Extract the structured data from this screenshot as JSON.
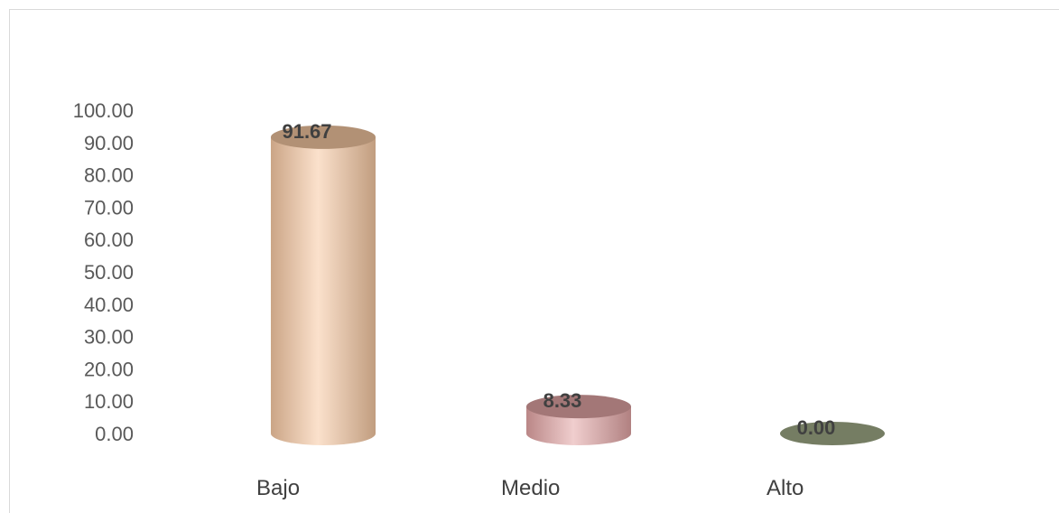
{
  "chart_data": {
    "type": "bar",
    "style": "3d-cylinder",
    "categories": [
      "Bajo",
      "Medio",
      "Alto"
    ],
    "values": [
      91.67,
      8.33,
      0.0
    ],
    "data_labels": [
      "91.67",
      "8.33",
      "0.00"
    ],
    "colors": [
      "#f7c9a3",
      "#e3a5a5",
      "#a3ad8a"
    ],
    "title": "",
    "xlabel": "",
    "ylabel": "",
    "ylim": [
      0,
      100
    ],
    "yticks": [
      "0.00",
      "10.00",
      "20.00",
      "30.00",
      "40.00",
      "50.00",
      "60.00",
      "70.00",
      "80.00",
      "90.00",
      "100.00"
    ],
    "grid": false,
    "legend": "none"
  }
}
